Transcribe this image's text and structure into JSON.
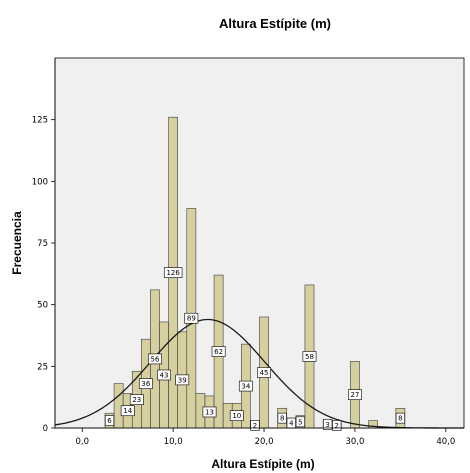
{
  "chart_data": {
    "type": "bar",
    "title": "Altura Estípite (m)",
    "xlabel": "Altura Estípite (m)",
    "ylabel": "Frecuencia",
    "xlim": [
      -3,
      42
    ],
    "ylim": [
      0,
      150
    ],
    "x_ticks": [
      0,
      10,
      20,
      30,
      40
    ],
    "x_tick_labels": [
      "0,0",
      "10,0",
      "20,0",
      "30,0",
      "40,0"
    ],
    "y_ticks": [
      0,
      25,
      50,
      75,
      100,
      125
    ],
    "y_tick_labels": [
      "0",
      "25",
      "50",
      "75",
      "100",
      "125"
    ],
    "grid": false,
    "bin_width": 1,
    "bins": [
      {
        "x": 3,
        "value": 6,
        "label": "6"
      },
      {
        "x": 4,
        "value": 18,
        "label": ""
      },
      {
        "x": 5,
        "value": 14,
        "label": "14"
      },
      {
        "x": 6,
        "value": 23,
        "label": "23"
      },
      {
        "x": 7,
        "value": 36,
        "label": "36"
      },
      {
        "x": 8,
        "value": 56,
        "label": "56"
      },
      {
        "x": 9,
        "value": 43,
        "label": "43"
      },
      {
        "x": 10,
        "value": 126,
        "label": "126"
      },
      {
        "x": 11,
        "value": 39,
        "label": "39"
      },
      {
        "x": 12,
        "value": 89,
        "label": "89"
      },
      {
        "x": 13,
        "value": 14,
        "label": ""
      },
      {
        "x": 14,
        "value": 13,
        "label": "13"
      },
      {
        "x": 15,
        "value": 62,
        "label": "62"
      },
      {
        "x": 16,
        "value": 10,
        "label": ""
      },
      {
        "x": 17,
        "value": 10,
        "label": "10"
      },
      {
        "x": 18,
        "value": 34,
        "label": "34"
      },
      {
        "x": 19,
        "value": 2,
        "label": "2"
      },
      {
        "x": 20,
        "value": 45,
        "label": "45"
      },
      {
        "x": 22,
        "value": 8,
        "label": "8"
      },
      {
        "x": 23,
        "value": 4,
        "label": "4"
      },
      {
        "x": 24,
        "value": 5,
        "label": "5"
      },
      {
        "x": 25,
        "value": 58,
        "label": "58"
      },
      {
        "x": 27,
        "value": 3,
        "label": "3"
      },
      {
        "x": 28,
        "value": 2,
        "label": "2"
      },
      {
        "x": 30,
        "value": 27,
        "label": "27"
      },
      {
        "x": 32,
        "value": 3,
        "label": ""
      },
      {
        "x": 35,
        "value": 8,
        "label": "8"
      }
    ],
    "normal_curve": {
      "mean": 13.8,
      "sd": 6.3,
      "peak": 44
    },
    "colors": {
      "bar_fill": "#d6cf9f",
      "bar_stroke": "#3c3c3c",
      "plot_background": "#f0f0f0",
      "curve": "#1a1a1a"
    }
  }
}
